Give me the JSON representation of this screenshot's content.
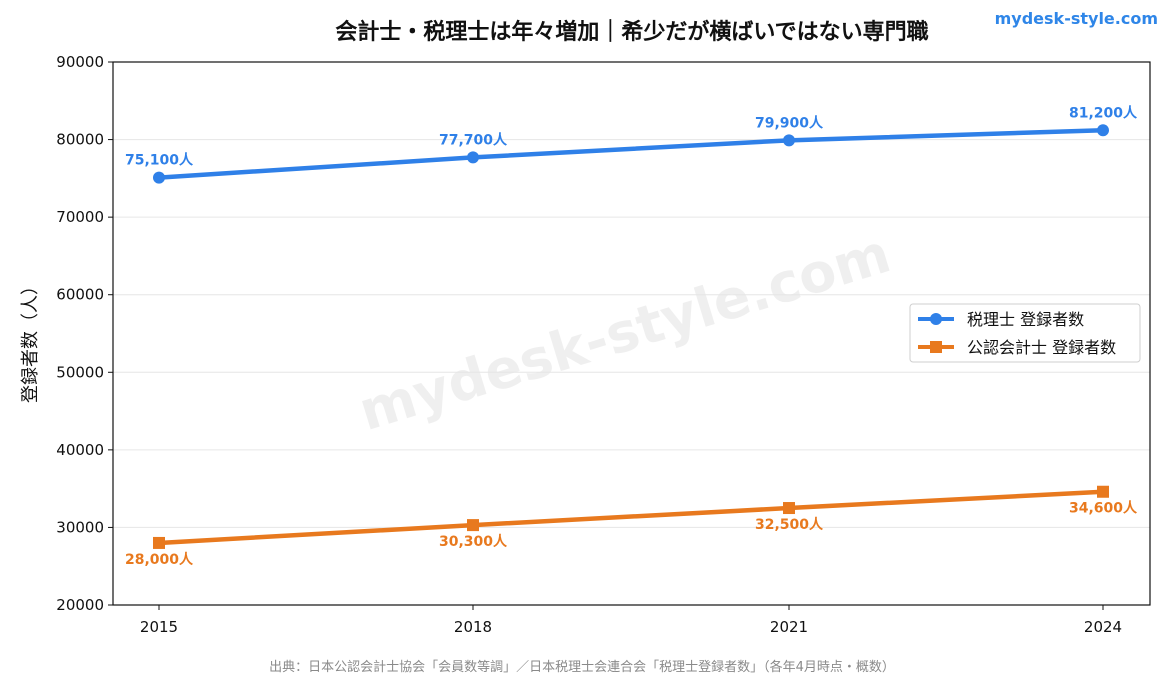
{
  "brand": {
    "text": "mydesk-style.com",
    "color": "#2f86e8"
  },
  "watermark": "mydesk-style.com",
  "source": "出典：日本公認会計士協会「会員数等調」／日本税理士会連合会「税理士登録者数」（各年4月時点・概数）",
  "chart_data": {
    "type": "line",
    "title": "会計士・税理士は年々増加｜希少だが横ばいではない専門職",
    "xlabel": "",
    "ylabel": "登録者数（人）",
    "x": [
      "2015",
      "2018",
      "2021",
      "2024"
    ],
    "ylim": [
      20000,
      90000
    ],
    "yticks": [
      20000,
      30000,
      40000,
      50000,
      60000,
      70000,
      80000,
      90000
    ],
    "grid": "horizontal",
    "legend": "center-right",
    "series": [
      {
        "name": "税理士 登録者数",
        "values": [
          75100,
          77700,
          79900,
          81200
        ],
        "labels": [
          "75,100人",
          "77,700人",
          "79,900人",
          "81,200人"
        ],
        "color": "#2f80e8",
        "marker": "circle",
        "label_position": "above"
      },
      {
        "name": "公認会計士 登録者数",
        "values": [
          28000,
          30300,
          32500,
          34600
        ],
        "labels": [
          "28,000人",
          "30,300人",
          "32,500人",
          "34,600人"
        ],
        "color": "#e8791e",
        "marker": "square",
        "label_position": "below"
      }
    ]
  }
}
